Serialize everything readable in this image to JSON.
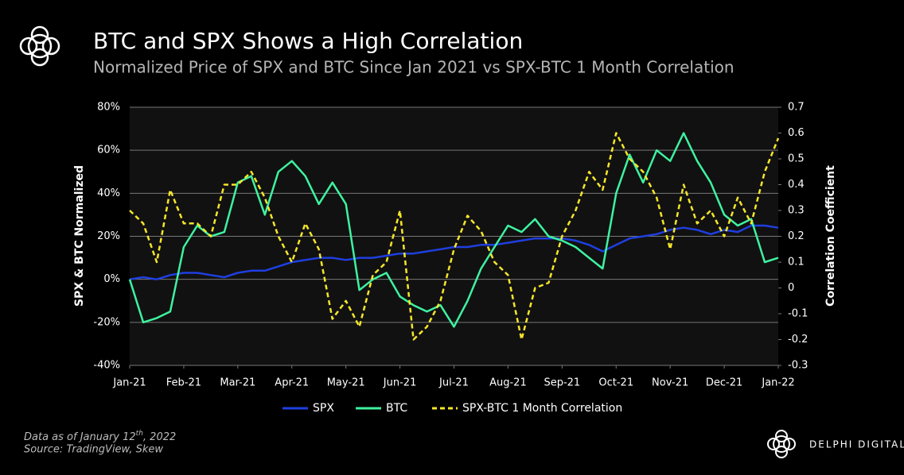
{
  "chart_data": {
    "type": "line",
    "title": "BTC and SPX Shows a High Correlation",
    "subtitle": "Normalized Price of SPX and BTC Since Jan 2021 vs SPX-BTC 1 Month Correlation",
    "ylabel": "SPX & BTC Normalized",
    "y2label": "Correlation Coefficient",
    "xlim": [
      0,
      12
    ],
    "xticks": [
      {
        "value": 0,
        "label": "Jan-21"
      },
      {
        "value": 1,
        "label": "Feb-21"
      },
      {
        "value": 2,
        "label": "Mar-21"
      },
      {
        "value": 3,
        "label": "Apr-21"
      },
      {
        "value": 4,
        "label": "May-21"
      },
      {
        "value": 5,
        "label": "Jun-21"
      },
      {
        "value": 6,
        "label": "Jul-21"
      },
      {
        "value": 7,
        "label": "Aug-21"
      },
      {
        "value": 8,
        "label": "Sep-21"
      },
      {
        "value": 9,
        "label": "Oct-21"
      },
      {
        "value": 10,
        "label": "Nov-21"
      },
      {
        "value": 11,
        "label": "Dec-21"
      },
      {
        "value": 12,
        "label": "Jan-22"
      }
    ],
    "x": [
      0,
      0.25,
      0.5,
      0.75,
      1,
      1.25,
      1.5,
      1.75,
      2,
      2.25,
      2.5,
      2.75,
      3,
      3.25,
      3.5,
      3.75,
      4,
      4.25,
      4.5,
      4.75,
      5,
      5.25,
      5.5,
      5.75,
      6,
      6.25,
      6.5,
      6.75,
      7,
      7.25,
      7.5,
      7.75,
      8,
      8.25,
      8.5,
      8.75,
      9,
      9.25,
      9.5,
      9.75,
      10,
      10.25,
      10.5,
      10.75,
      11,
      11.25,
      11.5,
      11.75,
      12
    ],
    "ylim": [
      -40,
      80
    ],
    "yticks": [
      {
        "value": -40,
        "label": "-40%"
      },
      {
        "value": -20,
        "label": "-20%"
      },
      {
        "value": 0,
        "label": "0%"
      },
      {
        "value": 20,
        "label": "20%"
      },
      {
        "value": 40,
        "label": "40%"
      },
      {
        "value": 60,
        "label": "60%"
      },
      {
        "value": 80,
        "label": "80%"
      }
    ],
    "y2lim": [
      -0.3,
      0.7
    ],
    "y2ticks": [
      -0.3,
      -0.2,
      -0.1,
      0,
      0.1,
      0.2,
      0.3,
      0.4,
      0.5,
      0.6,
      0.7
    ],
    "grid": true,
    "series": [
      {
        "name": "SPX",
        "color": "#1f3fe0",
        "style": "solid",
        "values": [
          0,
          1,
          0,
          2,
          3,
          3,
          2,
          1,
          3,
          4,
          4,
          6,
          8,
          9,
          10,
          10,
          9,
          10,
          10,
          11,
          12,
          12,
          13,
          14,
          15,
          15,
          16,
          16,
          17,
          18,
          19,
          19,
          19,
          18,
          16,
          13,
          16,
          19,
          20,
          21,
          23,
          24,
          23,
          21,
          23,
          22,
          25,
          25,
          24
        ]
      },
      {
        "name": "BTC",
        "color": "#3ef2a0",
        "style": "solid",
        "values": [
          0,
          -20,
          -18,
          -15,
          15,
          25,
          20,
          22,
          45,
          48,
          30,
          50,
          55,
          48,
          35,
          45,
          35,
          -5,
          0,
          3,
          -8,
          -12,
          -15,
          -12,
          -22,
          -10,
          5,
          15,
          25,
          22,
          28,
          20,
          18,
          15,
          10,
          5,
          40,
          58,
          45,
          60,
          55,
          68,
          55,
          45,
          30,
          25,
          28,
          8,
          10
        ]
      },
      {
        "name": "SPX-BTC 1 Month Correlation",
        "color": "#f5e62a",
        "style": "dashed",
        "axis": "y2",
        "values": [
          0.3,
          0.25,
          0.1,
          0.38,
          0.25,
          0.25,
          0.2,
          0.4,
          0.4,
          0.45,
          0.35,
          0.2,
          0.1,
          0.25,
          0.15,
          -0.12,
          -0.05,
          -0.15,
          0.05,
          0.1,
          0.3,
          -0.2,
          -0.15,
          -0.05,
          0.15,
          0.28,
          0.22,
          0.1,
          0.05,
          -0.2,
          0,
          0.02,
          0.2,
          0.3,
          0.45,
          0.38,
          0.6,
          0.5,
          0.45,
          0.35,
          0.15,
          0.4,
          0.25,
          0.3,
          0.2,
          0.35,
          0.25,
          0.45,
          0.58
        ]
      }
    ],
    "note": {
      "pre": "Data as of January 12",
      "sup": "th",
      "post": ", 2022"
    },
    "source": "Source:  TradingView, Skew",
    "brand": "DELPHI DIGITAL"
  }
}
